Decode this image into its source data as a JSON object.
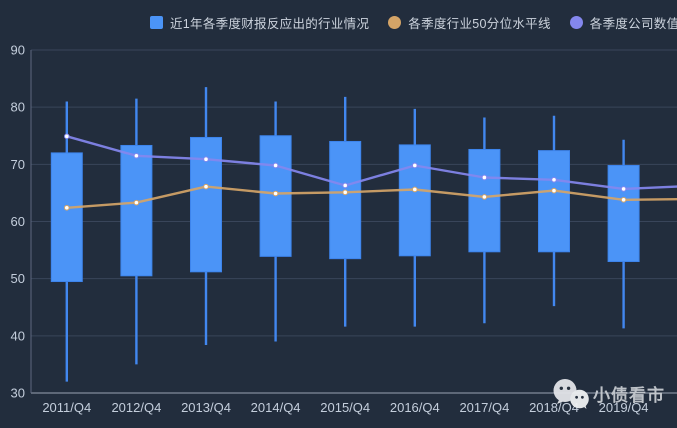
{
  "legend": {
    "items": [
      {
        "label": "近1年各季度财报反应出的行业情况",
        "color": "#4b94f7",
        "shape": "square"
      },
      {
        "label": "各季度行业50分位水平线",
        "color": "#d4a467",
        "shape": "circle"
      },
      {
        "label": "各季度公司数值",
        "color": "#8487ee",
        "shape": "circle"
      }
    ]
  },
  "watermark": {
    "text": "小债看市",
    "icon": "wechat-icon"
  },
  "colors": {
    "background": "#222d3d",
    "grid": "#39455a",
    "axis_line_left": "#5d6880",
    "axis_line_bottom": "#9aa4b4",
    "axis_label": "#c4cedc",
    "legend_label": "#ccd3dd",
    "candle_fill": "#4b94f7",
    "candle_border": "#3d84ec",
    "whisker": "#4287ef",
    "percentile_line": "#d4a467",
    "company_line": "#8487ee",
    "point_fill": "#ffffff",
    "watermark_text": "#c6cad0"
  },
  "chart_data": {
    "type": "candlestick",
    "title": "",
    "categories": [
      "2011/Q4",
      "2012/Q4",
      "2013/Q4",
      "2014/Q4",
      "2015/Q4",
      "2016/Q4",
      "2017/Q4",
      "2018/Q4",
      "2019/Q4"
    ],
    "box_format": [
      "whisker_low",
      "box_low",
      "box_high",
      "whisker_high"
    ],
    "series": [
      {
        "name": "近1年各季度财报反应出的行业情况",
        "type": "candlestick",
        "color": "#4b94f7",
        "data": [
          [
            32.0,
            49.5,
            72.0,
            81.0
          ],
          [
            35.0,
            50.5,
            73.3,
            81.5
          ],
          [
            38.4,
            51.2,
            74.7,
            83.5
          ],
          [
            39.0,
            53.9,
            75.0,
            81.0
          ],
          [
            41.6,
            53.5,
            74.0,
            81.8
          ],
          [
            41.6,
            54.0,
            73.4,
            79.7
          ],
          [
            42.2,
            54.7,
            72.6,
            78.2
          ],
          [
            45.2,
            54.7,
            72.4,
            78.5
          ],
          [
            41.3,
            53.0,
            69.8,
            74.3
          ]
        ]
      },
      {
        "name": "各季度行业50分位水平线",
        "type": "line",
        "color": "#d4a467",
        "values": [
          62.4,
          63.3,
          66.1,
          64.9,
          65.1,
          65.6,
          64.3,
          65.4,
          63.8
        ],
        "right_edge_value": 63.9
      },
      {
        "name": "各季度公司数值",
        "type": "line",
        "color": "#8487ee",
        "values": [
          74.9,
          71.5,
          70.9,
          69.8,
          66.3,
          69.8,
          67.7,
          67.3,
          65.7
        ],
        "right_edge_value": 66.1
      }
    ],
    "ylim": [
      30,
      90
    ],
    "yticks": [
      30,
      40,
      50,
      60,
      70,
      80,
      90
    ],
    "grid": true,
    "legend_position": "top"
  }
}
